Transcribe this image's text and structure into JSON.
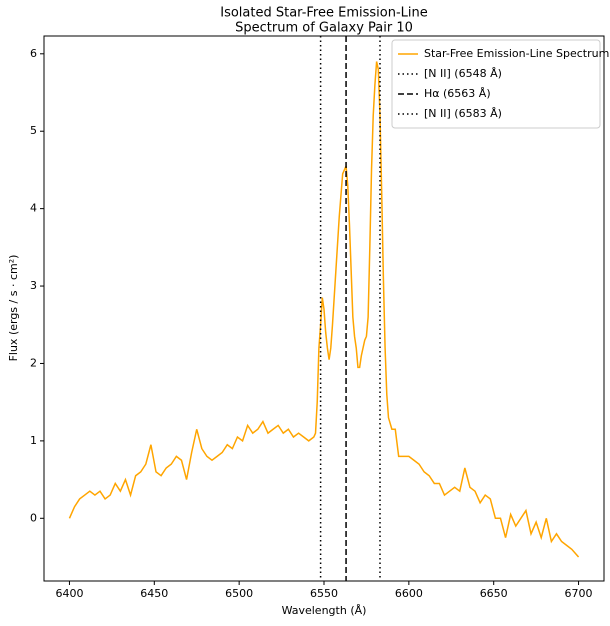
{
  "chart_data": {
    "type": "line",
    "title": [
      "Isolated Star-Free Emission-Line",
      "Spectrum of Galaxy Pair 10"
    ],
    "xlabel": "Wavelength (Å)",
    "ylabel": "Flux (ergs / s · cm²)",
    "xlim": [
      6385,
      6715
    ],
    "ylim": [
      -0.81,
      6.23
    ],
    "xticks": [
      6400,
      6450,
      6500,
      6550,
      6600,
      6650,
      6700
    ],
    "yticks": [
      0,
      1,
      2,
      3,
      4,
      5,
      6
    ],
    "legend": "upper right",
    "series": [
      {
        "name": "Star-Free Emission-Line Spectrum",
        "color": "#ffa500",
        "x": [
          6400,
          6403,
          6406,
          6409,
          6412,
          6415,
          6418,
          6421,
          6424,
          6427,
          6430,
          6433,
          6436,
          6439,
          6442,
          6445,
          6448,
          6451,
          6454,
          6457,
          6460,
          6463,
          6466,
          6469,
          6472,
          6475,
          6478,
          6481,
          6484,
          6487,
          6490,
          6493,
          6496,
          6499,
          6502,
          6505,
          6508,
          6511,
          6514,
          6517,
          6520,
          6523,
          6526,
          6529,
          6532,
          6535,
          6538,
          6541,
          6544,
          6545,
          6546,
          6547,
          6548,
          6549,
          6550,
          6551,
          6552,
          6553,
          6554,
          6555,
          6557,
          6559,
          6561,
          6563,
          6564,
          6565,
          6566,
          6567,
          6568,
          6569,
          6570,
          6571,
          6572,
          6574,
          6575,
          6576,
          6577,
          6578,
          6579,
          6580,
          6581,
          6582,
          6583,
          6584,
          6585,
          6586,
          6587,
          6588,
          6590,
          6592,
          6594,
          6597,
          6600,
          6603,
          6606,
          6609,
          6612,
          6615,
          6618,
          6621,
          6624,
          6627,
          6630,
          6633,
          6636,
          6639,
          6642,
          6645,
          6648,
          6651,
          6654,
          6657,
          6660,
          6663,
          6666,
          6669,
          6672,
          6675,
          6678,
          6681,
          6684,
          6687,
          6690,
          6693,
          6696,
          6700
        ],
        "values": [
          0.0,
          0.15,
          0.25,
          0.3,
          0.35,
          0.3,
          0.35,
          0.25,
          0.3,
          0.45,
          0.35,
          0.5,
          0.3,
          0.55,
          0.6,
          0.7,
          0.95,
          0.6,
          0.55,
          0.65,
          0.7,
          0.8,
          0.75,
          0.5,
          0.85,
          1.15,
          0.9,
          0.8,
          0.75,
          0.8,
          0.85,
          0.95,
          0.9,
          1.05,
          1.0,
          1.2,
          1.1,
          1.15,
          1.25,
          1.1,
          1.15,
          1.2,
          1.1,
          1.15,
          1.05,
          1.1,
          1.05,
          1.0,
          1.05,
          1.1,
          1.5,
          2.2,
          2.5,
          2.85,
          2.7,
          2.4,
          2.2,
          2.05,
          2.2,
          2.5,
          3.2,
          3.9,
          4.45,
          4.55,
          4.3,
          3.8,
          3.2,
          2.6,
          2.35,
          2.2,
          1.95,
          1.95,
          2.1,
          2.3,
          2.35,
          2.6,
          3.5,
          4.5,
          5.2,
          5.6,
          5.9,
          5.8,
          5.2,
          4.2,
          3.1,
          2.2,
          1.6,
          1.3,
          1.15,
          1.15,
          0.8,
          0.8,
          0.8,
          0.75,
          0.7,
          0.6,
          0.55,
          0.45,
          0.45,
          0.3,
          0.35,
          0.4,
          0.35,
          0.65,
          0.4,
          0.35,
          0.2,
          0.3,
          0.25,
          0.0,
          0.0,
          -0.25,
          0.05,
          -0.1,
          0.0,
          0.1,
          -0.2,
          -0.05,
          -0.25,
          0.0,
          -0.3,
          -0.2,
          -0.3,
          -0.35,
          -0.4,
          -0.5
        ]
      }
    ],
    "vlines": [
      {
        "x": 6548,
        "style": "dotted",
        "color": "#000000",
        "label": "[N II] (6548 Å)"
      },
      {
        "x": 6563,
        "style": "dashed",
        "color": "#000000",
        "label": "Hα (6563 Å)"
      },
      {
        "x": 6583,
        "style": "dotted",
        "color": "#000000",
        "label": "[N II] (6583 Å)"
      }
    ]
  }
}
